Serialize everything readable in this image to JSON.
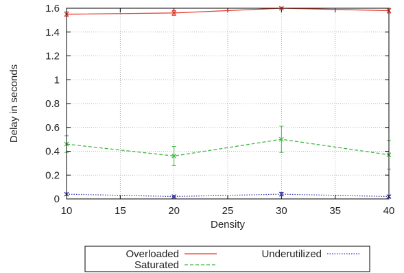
{
  "chart_data": {
    "type": "line",
    "xlabel": "Density",
    "ylabel": "Delay in seconds",
    "x": [
      10,
      20,
      30,
      40
    ],
    "xlim": [
      10,
      40
    ],
    "ylim": [
      0,
      1.6
    ],
    "xticks": [
      10,
      15,
      20,
      25,
      30,
      35,
      40
    ],
    "yticks": [
      0,
      0.2,
      0.4,
      0.6,
      0.8,
      1,
      1.2,
      1.4,
      1.6
    ],
    "xtick_labels": [
      "10",
      "15",
      "20",
      "25",
      "30",
      "35",
      "40"
    ],
    "ytick_labels": [
      "0",
      "0.2",
      "0.4",
      "0.6",
      "0.8",
      "1",
      "1.2",
      "1.4",
      "1.6"
    ],
    "grid": true,
    "legend_position": "bottom",
    "series": [
      {
        "name": "Overloaded",
        "values": [
          1.55,
          1.56,
          1.6,
          1.58
        ],
        "errors": [
          0.02,
          0.02,
          0.01,
          0.02
        ],
        "color": "#e8382b",
        "dash": "solid"
      },
      {
        "name": "Saturated",
        "values": [
          0.46,
          0.36,
          0.5,
          0.37
        ],
        "errors": [
          0.07,
          0.08,
          0.11,
          0.12
        ],
        "color": "#3fb63f",
        "dash": "dashed"
      },
      {
        "name": "Underutilized",
        "values": [
          0.04,
          0.02,
          0.04,
          0.02
        ],
        "errors": [
          0.01,
          0.01,
          0.015,
          0.01
        ],
        "color": "#3b3ba8",
        "dash": "dotted"
      }
    ]
  }
}
